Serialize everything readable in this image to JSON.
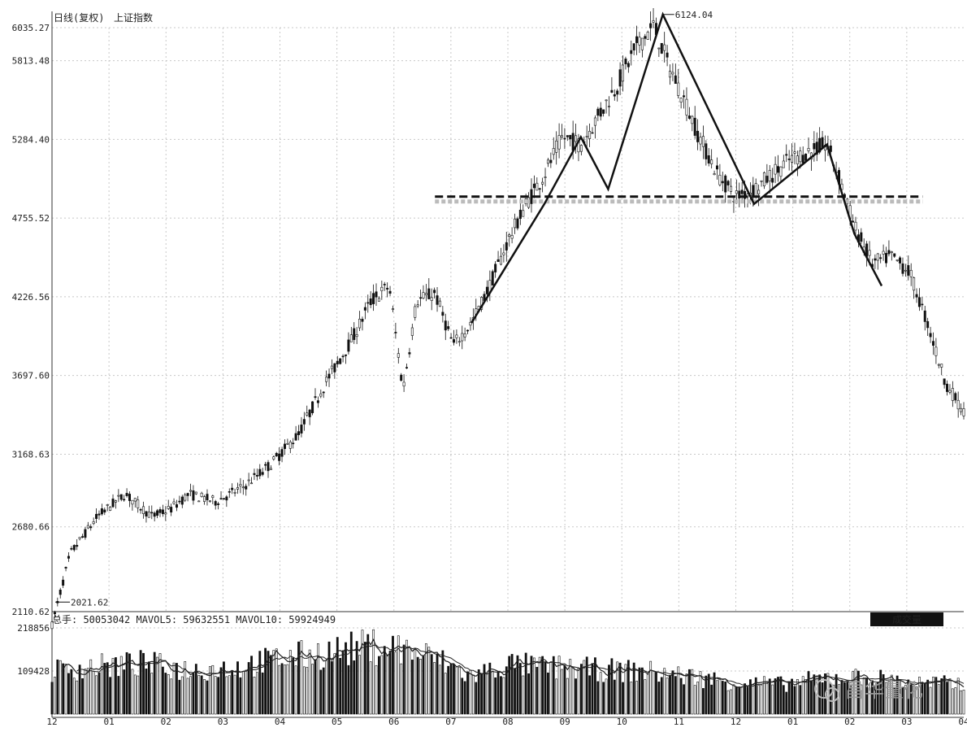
{
  "chart_data": {
    "type": "candlestick",
    "header": {
      "period": "日线(复权)",
      "instrument": "上证指数"
    },
    "price_axis": {
      "ylim": [
        2110.62,
        6035.27
      ],
      "tick_labels": [
        "6035.27",
        "5813.48",
        "5284.40",
        "4755.52",
        "4226.56",
        "3697.60",
        "3168.63",
        "2680.66",
        "2110.62"
      ],
      "tick_values": [
        6035.27,
        5813.48,
        5284.4,
        4755.52,
        4226.56,
        3697.6,
        3168.63,
        2680.66,
        2110.62
      ]
    },
    "x_axis": {
      "tick_labels": [
        "12",
        "01",
        "02",
        "03",
        "04",
        "05",
        "06",
        "07",
        "08",
        "09",
        "10",
        "11",
        "12",
        "01",
        "02",
        "03",
        "04"
      ]
    },
    "annotations": {
      "high": {
        "label": "6124.04",
        "value": 6124.04
      },
      "low": {
        "label": "2021.62",
        "value": 2021.62
      }
    },
    "neckline": {
      "value": 4900
    },
    "pattern_lines": [
      [
        [
          0.46,
          4050
        ],
        [
          0.54,
          4850
        ],
        [
          0.58,
          5300
        ],
        [
          0.61,
          4950
        ],
        [
          0.67,
          6124
        ],
        [
          0.77,
          4850
        ],
        [
          0.85,
          5250
        ],
        [
          0.88,
          4650
        ],
        [
          0.91,
          4300
        ]
      ]
    ],
    "price_path": [
      [
        0.0,
        2021
      ],
      [
        0.02,
        2500
      ],
      [
        0.05,
        2750
      ],
      [
        0.08,
        2900
      ],
      [
        0.11,
        2750
      ],
      [
        0.13,
        2800
      ],
      [
        0.15,
        2900
      ],
      [
        0.18,
        2850
      ],
      [
        0.21,
        2950
      ],
      [
        0.24,
        3100
      ],
      [
        0.27,
        3300
      ],
      [
        0.3,
        3650
      ],
      [
        0.33,
        3950
      ],
      [
        0.35,
        4200
      ],
      [
        0.37,
        4300
      ],
      [
        0.385,
        3600
      ],
      [
        0.4,
        4200
      ],
      [
        0.42,
        4250
      ],
      [
        0.44,
        3900
      ],
      [
        0.46,
        4050
      ],
      [
        0.48,
        4300
      ],
      [
        0.5,
        4600
      ],
      [
        0.52,
        4850
      ],
      [
        0.54,
        5050
      ],
      [
        0.56,
        5300
      ],
      [
        0.58,
        5250
      ],
      [
        0.6,
        5450
      ],
      [
        0.62,
        5650
      ],
      [
        0.64,
        5900
      ],
      [
        0.66,
        6050
      ],
      [
        0.675,
        5800
      ],
      [
        0.69,
        5600
      ],
      [
        0.71,
        5300
      ],
      [
        0.73,
        5050
      ],
      [
        0.75,
        4900
      ],
      [
        0.77,
        4950
      ],
      [
        0.79,
        5050
      ],
      [
        0.81,
        5150
      ],
      [
        0.83,
        5200
      ],
      [
        0.85,
        5250
      ],
      [
        0.865,
        5000
      ],
      [
        0.88,
        4700
      ],
      [
        0.9,
        4450
      ],
      [
        0.92,
        4500
      ],
      [
        0.94,
        4400
      ],
      [
        0.96,
        4050
      ],
      [
        0.98,
        3650
      ],
      [
        1.0,
        3450
      ]
    ],
    "volume": {
      "label_text": "总手: 50053042 MAVOL5: 59632551 MAVOL10: 59924949",
      "badge": "成交量",
      "ylim": [
        0,
        218856
      ],
      "tick_labels": [
        "218856",
        "109428"
      ],
      "tick_values": [
        218856,
        109428
      ],
      "profile": [
        [
          0.0,
          110000
        ],
        [
          0.05,
          120000
        ],
        [
          0.1,
          128000
        ],
        [
          0.15,
          112000
        ],
        [
          0.2,
          118000
        ],
        [
          0.25,
          140000
        ],
        [
          0.3,
          155000
        ],
        [
          0.35,
          172000
        ],
        [
          0.38,
          168000
        ],
        [
          0.42,
          140000
        ],
        [
          0.46,
          95000
        ],
        [
          0.5,
          125000
        ],
        [
          0.55,
          118000
        ],
        [
          0.6,
          112000
        ],
        [
          0.65,
          108000
        ],
        [
          0.7,
          95000
        ],
        [
          0.75,
          80000
        ],
        [
          0.8,
          75000
        ],
        [
          0.85,
          92000
        ],
        [
          0.9,
          92000
        ],
        [
          0.95,
          78000
        ],
        [
          1.0,
          76000
        ]
      ]
    },
    "watermark": "昌华量化",
    "colors": {
      "line": "#111111",
      "neckline": "#111111",
      "grid": "#c8c8c8",
      "badge_bg": "#111111",
      "badge_text": "#ffffff"
    }
  }
}
